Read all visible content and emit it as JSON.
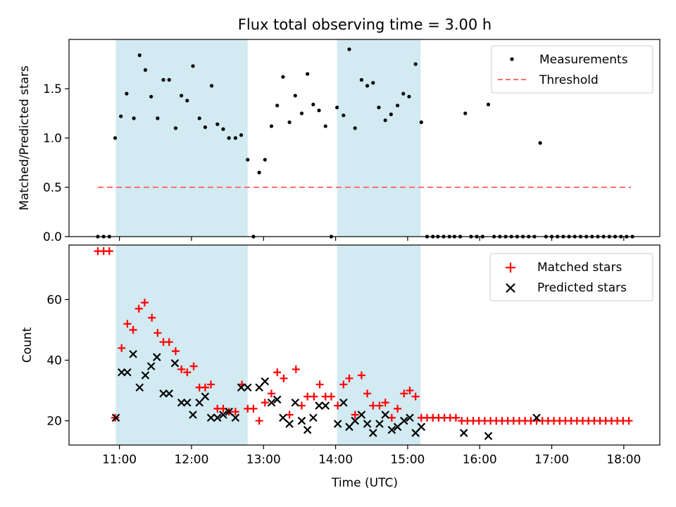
{
  "figure_title": "Flux total observing time = 3.00 h",
  "xlabel": "Time (UTC)",
  "colors": {
    "shade": "#add8e6",
    "measurements": "#000000",
    "threshold": "#ff7070",
    "matched": "#ff0000",
    "predicted": "#000000"
  },
  "chart_data": [
    {
      "type": "scatter",
      "panel": "top",
      "ylabel": "Matched/Predicted stars",
      "xlim": [
        10.3,
        18.5
      ],
      "ylim": [
        0,
        2.0
      ],
      "yticks": [
        0.0,
        0.5,
        1.0,
        1.5
      ],
      "ytick_labels": [
        "0.0",
        "0.5",
        "1.0",
        "1.5"
      ],
      "legend_position": "top-right",
      "shaded_intervals": [
        [
          10.95,
          12.78
        ],
        [
          14.02,
          15.18
        ]
      ],
      "series": [
        {
          "name": "Measurements",
          "marker": "dot",
          "x": [
            10.7,
            10.78,
            10.86,
            10.94,
            11.02,
            11.1,
            11.2,
            11.28,
            11.36,
            11.44,
            11.53,
            11.61,
            11.69,
            11.78,
            11.86,
            11.94,
            12.02,
            12.11,
            12.19,
            12.28,
            12.36,
            12.44,
            12.52,
            12.61,
            12.69,
            12.78,
            12.86,
            12.94,
            13.02,
            13.11,
            13.19,
            13.27,
            13.36,
            13.44,
            13.53,
            13.61,
            13.69,
            13.77,
            13.86,
            13.94,
            14.02,
            14.11,
            14.19,
            14.27,
            14.36,
            14.44,
            14.52,
            14.6,
            14.69,
            14.77,
            14.86,
            14.94,
            15.02,
            15.11,
            15.19,
            15.27,
            15.35,
            15.42,
            15.5,
            15.58,
            15.65,
            15.73,
            15.8,
            15.88,
            15.96,
            16.04,
            16.12,
            16.2,
            16.28,
            16.36,
            16.44,
            16.52,
            16.6,
            16.68,
            16.76,
            16.84,
            16.92,
            17.0,
            17.08,
            17.16,
            17.24,
            17.32,
            17.4,
            17.48,
            17.56,
            17.64,
            17.72,
            17.8,
            17.88,
            17.96,
            18.04,
            18.12
          ],
          "y": [
            0,
            0,
            0,
            1.0,
            1.22,
            1.45,
            1.2,
            1.84,
            1.69,
            1.42,
            1.2,
            1.59,
            1.59,
            1.1,
            1.43,
            1.38,
            1.73,
            1.2,
            1.11,
            1.53,
            1.14,
            1.09,
            1.0,
            1.0,
            1.03,
            0.78,
            0,
            0.65,
            0.78,
            1.12,
            1.33,
            1.62,
            1.16,
            1.43,
            1.25,
            1.65,
            1.34,
            1.28,
            1.12,
            0,
            1.31,
            1.23,
            1.9,
            1.1,
            1.59,
            1.53,
            1.56,
            1.31,
            1.18,
            1.24,
            1.33,
            1.45,
            1.42,
            1.75,
            1.16,
            0,
            0,
            0,
            0,
            0,
            0,
            0,
            1.25,
            0,
            0,
            0,
            1.34,
            0,
            0,
            0,
            0,
            0,
            0,
            0,
            0,
            0.95,
            0,
            0,
            0,
            0,
            0,
            0,
            0,
            0,
            0,
            0,
            0,
            0,
            0,
            0,
            0,
            0
          ]
        },
        {
          "name": "Threshold",
          "marker": "dashed-line",
          "x": [
            10.7,
            18.1
          ],
          "y": [
            0.5,
            0.5
          ]
        }
      ]
    },
    {
      "type": "scatter",
      "panel": "bottom",
      "ylabel": "Count",
      "xlim": [
        10.3,
        18.5
      ],
      "ylim": [
        12,
        78
      ],
      "yticks": [
        20,
        40,
        60
      ],
      "ytick_labels": [
        "20",
        "40",
        "60"
      ],
      "xticks": [
        11,
        12,
        13,
        14,
        15,
        16,
        17,
        18
      ],
      "xtick_labels": [
        "11:00",
        "12:00",
        "13:00",
        "14:00",
        "15:00",
        "16:00",
        "17:00",
        "18:00"
      ],
      "legend_position": "top-right",
      "shaded_intervals": [
        [
          10.95,
          12.78
        ],
        [
          14.02,
          15.18
        ]
      ],
      "series": [
        {
          "name": "Matched stars",
          "marker": "plus",
          "x": [
            10.7,
            10.78,
            10.86,
            10.94,
            11.03,
            11.11,
            11.19,
            11.27,
            11.35,
            11.45,
            11.53,
            11.61,
            11.69,
            11.78,
            11.86,
            11.94,
            12.03,
            12.11,
            12.19,
            12.27,
            12.36,
            12.44,
            12.52,
            12.61,
            12.7,
            12.78,
            12.86,
            12.94,
            13.02,
            13.11,
            13.19,
            13.28,
            13.36,
            13.45,
            13.53,
            13.61,
            13.7,
            13.78,
            13.86,
            13.94,
            14.03,
            14.11,
            14.19,
            14.27,
            14.36,
            14.44,
            14.52,
            14.61,
            14.69,
            14.78,
            14.86,
            14.95,
            15.03,
            15.11,
            15.19,
            15.27,
            15.35,
            15.43,
            15.51,
            15.59,
            15.67,
            15.75,
            15.83,
            15.91,
            15.99,
            16.07,
            16.15,
            16.23,
            16.31,
            16.39,
            16.47,
            16.55,
            16.63,
            16.71,
            16.79,
            16.87,
            16.95,
            17.03,
            17.11,
            17.19,
            17.27,
            17.35,
            17.43,
            17.51,
            17.59,
            17.67,
            17.75,
            17.83,
            17.91,
            17.99,
            18.07
          ],
          "y": [
            76,
            76,
            76,
            21,
            44,
            52,
            50,
            57,
            59,
            54,
            49,
            46,
            46,
            43,
            37,
            36,
            38,
            31,
            31,
            32,
            24,
            24,
            23,
            23,
            32,
            24,
            24,
            20,
            26,
            29,
            36,
            34,
            22,
            37,
            25,
            28,
            28,
            32,
            28,
            28,
            25,
            32,
            34,
            22,
            35,
            29,
            25,
            25,
            26,
            21,
            24,
            29,
            30,
            28,
            21,
            21,
            21,
            21,
            21,
            21,
            21,
            20,
            20,
            20,
            20,
            20,
            20,
            20,
            20,
            20,
            20,
            20,
            20,
            20,
            20,
            20,
            20,
            20,
            20,
            20,
            20,
            20,
            20,
            20,
            20,
            20,
            20,
            20,
            20,
            20,
            20
          ]
        },
        {
          "name": "Predicted stars",
          "marker": "x",
          "x": [
            10.95,
            11.03,
            11.11,
            11.19,
            11.28,
            11.36,
            11.44,
            11.52,
            11.61,
            11.69,
            11.77,
            11.86,
            11.94,
            12.02,
            12.11,
            12.19,
            12.27,
            12.36,
            12.44,
            12.52,
            12.61,
            12.69,
            12.78,
            12.94,
            13.02,
            13.11,
            13.19,
            13.27,
            13.36,
            13.44,
            13.53,
            13.61,
            13.69,
            13.77,
            13.86,
            14.03,
            14.11,
            14.19,
            14.27,
            14.36,
            14.44,
            14.52,
            14.61,
            14.69,
            14.78,
            14.86,
            14.95,
            15.03,
            15.11,
            15.19,
            15.78,
            16.12,
            16.79
          ],
          "y": [
            21,
            36,
            36,
            42,
            31,
            35,
            38,
            41,
            29,
            29,
            39,
            26,
            26,
            22,
            26,
            28,
            21,
            21,
            22,
            23,
            21,
            31,
            31,
            31,
            33,
            26,
            27,
            21,
            19,
            26,
            20,
            17,
            21,
            25,
            25,
            19,
            26,
            18,
            20,
            22,
            19,
            16,
            19,
            22,
            17,
            18,
            20,
            21,
            16,
            18,
            16,
            15,
            21
          ]
        }
      ]
    }
  ]
}
